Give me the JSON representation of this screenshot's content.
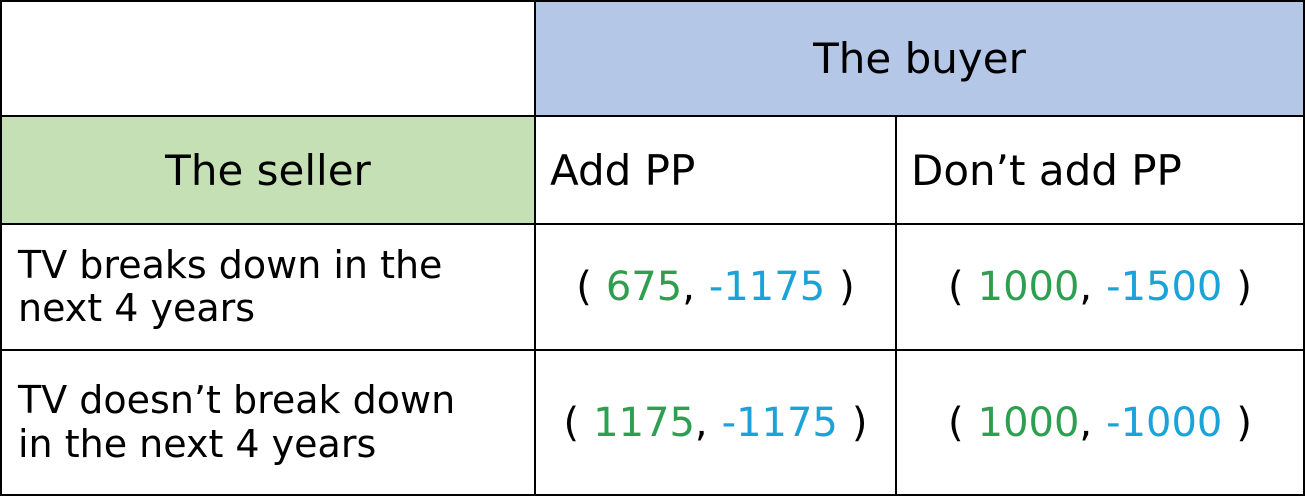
{
  "colors": {
    "buyer_header_bg": "#b4c7e7",
    "seller_header_bg": "#c5e0b4",
    "seller_payoff": "#2e9e50",
    "buyer_payoff": "#1aa3d9"
  },
  "table": {
    "buyer_header": "The buyer",
    "seller_header": "The seller",
    "columns": [
      "Add PP",
      "Don’t add PP"
    ],
    "rows": [
      {
        "label_line1": "TV breaks down in the",
        "label_line2": "next 4 years",
        "cells": [
          {
            "seller": "675",
            "buyer": "-1175"
          },
          {
            "seller": "1000",
            "buyer": "-1500"
          }
        ]
      },
      {
        "label_line1": "TV doesn’t break down",
        "label_line2": "in the next 4 years",
        "cells": [
          {
            "seller": "1175",
            "buyer": "-1175"
          },
          {
            "seller": "1000",
            "buyer": "-1000"
          }
        ]
      }
    ],
    "open_paren": "(",
    "comma": ",",
    "close_paren": ")"
  }
}
